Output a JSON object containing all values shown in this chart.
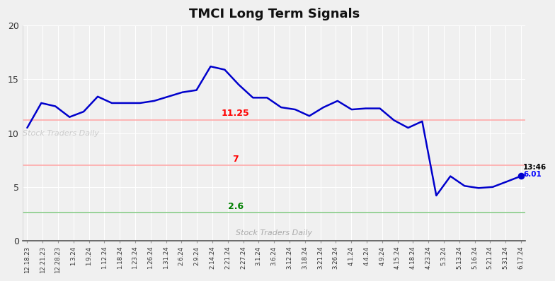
{
  "title": "TMCI Long Term Signals",
  "title_fontsize": 13,
  "title_fontweight": "bold",
  "hline_red1": 11.25,
  "hline_red2": 7.0,
  "hline_green": 2.6,
  "hline_red_color": "#ffaaaa",
  "hline_green_color": "#88cc88",
  "label_red1": "11.25",
  "label_red2": "7",
  "label_green": "2.6",
  "annotation_time": "13:46",
  "annotation_value": "6.01",
  "watermark": "Stock Traders Daily",
  "ylim": [
    0,
    20
  ],
  "yticks": [
    0,
    5,
    10,
    15,
    20
  ],
  "x_labels": [
    "12.18.23",
    "12.21.23",
    "12.28.23",
    "1.3.24",
    "1.9.24",
    "1.12.24",
    "1.18.24",
    "1.23.24",
    "1.26.24",
    "1.31.24",
    "2.6.24",
    "2.9.24",
    "2.14.24",
    "2.21.24",
    "2.27.24",
    "3.1.24",
    "3.6.24",
    "3.12.24",
    "3.18.24",
    "3.21.24",
    "3.26.24",
    "4.1.24",
    "4.4.24",
    "4.9.24",
    "4.15.24",
    "4.18.24",
    "4.23.24",
    "5.3.24",
    "5.13.24",
    "5.16.24",
    "5.21.24",
    "5.31.24",
    "6.17.24"
  ],
  "line_y": [
    10.5,
    12.8,
    12.5,
    11.5,
    12.0,
    13.4,
    12.8,
    12.8,
    12.8,
    13.0,
    13.4,
    13.8,
    14.0,
    16.2,
    15.9,
    14.5,
    13.3,
    13.3,
    12.4,
    12.2,
    11.6,
    12.4,
    13.0,
    12.2,
    12.3,
    12.3,
    11.2,
    10.5,
    11.1,
    4.2,
    6.0,
    5.1,
    4.9,
    5.0,
    5.5,
    6.01
  ],
  "line_color": "#0000cc",
  "line_width": 1.8,
  "bg_color": "#f0f0f0",
  "plot_bg_color": "#f0f0f0",
  "grid_color": "#ffffff",
  "endpoint_color": "#0000cc",
  "endpoint_size": 35,
  "label_fontsize": 6.2
}
